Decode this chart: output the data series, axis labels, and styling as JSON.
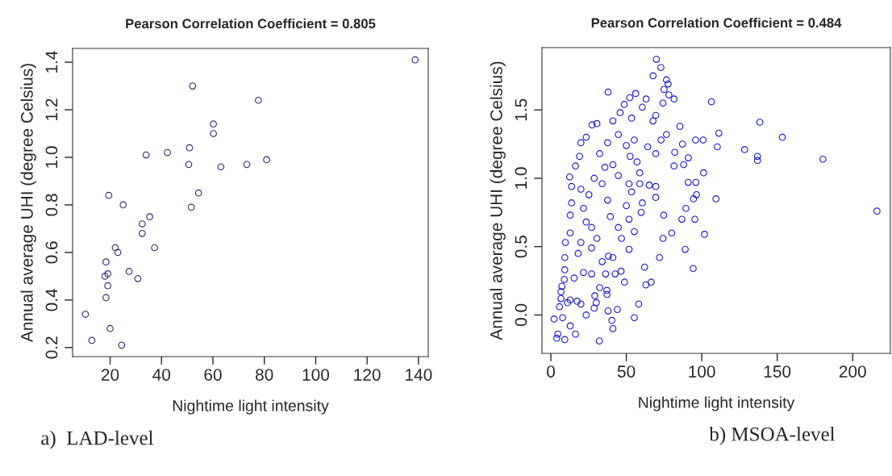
{
  "chart_data": [
    {
      "type": "scatter",
      "title": "Pearson Correlation Coefficient = 0.805",
      "xlabel": "Nightime light intensity",
      "ylabel": "Annual average UHI (degree Celsius)",
      "annotations": [
        "a)  LAD-level"
      ],
      "marker": "circle",
      "grid": false,
      "xlim": [
        5.4,
        143.8
      ],
      "ylim": [
        0.162,
        1.458
      ],
      "xticks": [
        20,
        40,
        60,
        80,
        100,
        120,
        140
      ],
      "yticks": [
        {
          "value": 0.2,
          "label": "0.2"
        },
        {
          "value": 0.4,
          "label": "0.4"
        },
        {
          "value": 0.6,
          "label": "0.6"
        },
        {
          "value": 0.8,
          "label": "0.8"
        },
        {
          "value": 1.0,
          "label": "1.0"
        },
        {
          "value": 1.2,
          "label": "1.2"
        },
        {
          "value": 1.4,
          "label": "1.4"
        }
      ],
      "series": [
        {
          "color": "#303070",
          "x": [
            138.7,
            52.1,
            77.7,
            60.2,
            60.2,
            50.9,
            42.3,
            34.0,
            80.9,
            73.2,
            50.6,
            63.1,
            54.4,
            19.5,
            25.1,
            51.6,
            35.4,
            32.5,
            32.5,
            37.3,
            22.0,
            23.0,
            18.4,
            27.4,
            30.8,
            18.0,
            19.1,
            19.1,
            18.4,
            10.4,
            20.0,
            12.9,
            24.5
          ],
          "values": [
            1.41,
            1.3,
            1.24,
            1.14,
            1.1,
            1.04,
            1.02,
            1.01,
            0.99,
            0.97,
            0.97,
            0.96,
            0.85,
            0.84,
            0.8,
            0.79,
            0.75,
            0.72,
            0.68,
            0.62,
            0.62,
            0.6,
            0.56,
            0.52,
            0.49,
            0.5,
            0.51,
            0.46,
            0.41,
            0.34,
            0.28,
            0.23,
            0.21
          ]
        }
      ]
    },
    {
      "type": "scatter",
      "title": "Pearson Correlation Coefficient = 0.484",
      "xlabel": "Nightime light intensity",
      "ylabel": "Annual average UHI (degree Celsius)",
      "annotations": [
        "b) MSOA-level"
      ],
      "marker": "circle",
      "grid": false,
      "xlim": [
        -5.9,
        225
      ],
      "ylim": [
        -0.281,
        1.956
      ],
      "xticks": [
        0,
        50,
        100,
        150,
        200
      ],
      "yticks": [
        {
          "value": 0.0,
          "label": "0.0"
        },
        {
          "value": 0.5,
          "label": "0.5"
        },
        {
          "value": 1.0,
          "label": "1.0"
        },
        {
          "value": 1.5,
          "label": "1.5"
        }
      ],
      "series": [
        {
          "color": "#1a1acc",
          "x": [
            69.9,
            72.9,
            67.7,
            76.6,
            77.7,
            37.9,
            56.2,
            75.0,
            78.2,
            81.6,
            52.3,
            63.1,
            106.4,
            48.6,
            74.3,
            138.5,
            153.4,
            111.3,
            95.9,
            100.9,
            110.3,
            128.4,
            136.9,
            136.9,
            180.3,
            216.1,
            101.2,
            96.1,
            91.0,
            109.4,
            96.5,
            94.5,
            95.4,
            101.8,
            89.0,
            94.3,
            85.5,
            87.2,
            91.1,
            88.0,
            82.1,
            81.6,
            89.5,
            86.8,
            80.1,
            74.8,
            72.0,
            74.3,
            66.5,
            62.9,
            62.1,
            58.2,
            55.3,
            44.0,
            41.1,
            40.4,
            37.9,
            32.1,
            16.3,
            9.2,
            3.9,
            4.6,
            2.1,
            12.8,
            7.8,
            5.7,
            11.0,
            6.7,
            9.2,
            7.3,
            23.4,
            28.7,
            30.1,
            37.2,
            37.1,
            32.3,
            29.1,
            17.4,
            19.9,
            12.8,
            15.4,
            21.6,
            27.0,
            36.3,
            42.6,
            46.5,
            48.8,
            38.1,
            41.1,
            51.8,
            46.8,
            55.3,
            59.8,
            51.8,
            60.6,
            65.2,
            69.5,
            58.9,
            52.5,
            64.2,
            67.7,
            60.6,
            53.5,
            45.9,
            41.1,
            30.5,
            27.3,
            23.4,
            19.9,
            19.0,
            16.3,
            12.4,
            13.7,
            13.7,
            12.8,
            12.8,
            9.6,
            9.2,
            8.9,
            6.7,
            19.9,
            25.2,
            21.6,
            23.4,
            27.0,
            30.5,
            19.9,
            27.0,
            18.1,
            34.0,
            28.7,
            35.8,
            41.1,
            44.7,
            34.0,
            37.6,
            39.4,
            44.7,
            32.3,
            37.6,
            44.7,
            50.0,
            55.3,
            57.1,
            51.8,
            53.5,
            50.0,
            58.9,
            69.5,
            69.5,
            73.0,
            76.6,
            69.5
          ],
          "values": [
            1.87,
            1.81,
            1.75,
            1.72,
            1.69,
            1.63,
            1.62,
            1.65,
            1.61,
            1.58,
            1.59,
            1.58,
            1.56,
            1.54,
            1.55,
            1.41,
            1.3,
            1.33,
            1.28,
            1.28,
            1.23,
            1.21,
            1.16,
            1.13,
            1.14,
            0.76,
            1.04,
            0.97,
            0.97,
            0.85,
            0.88,
            0.85,
            0.7,
            0.59,
            0.48,
            0.34,
            1.38,
            1.25,
            1.15,
            1.1,
            1.19,
            1.09,
            0.78,
            0.7,
            0.6,
            0.73,
            0.42,
            0.56,
            0.24,
            0.22,
            0.35,
            0.08,
            -0.02,
            0.04,
            -0.1,
            -0.04,
            0.03,
            -0.19,
            -0.14,
            -0.18,
            -0.17,
            -0.14,
            -0.03,
            -0.08,
            -0.02,
            0.06,
            0.09,
            0.12,
            0.33,
            0.21,
            0.0,
            0.05,
            0.09,
            0.15,
            0.18,
            0.2,
            0.14,
            0.1,
            0.08,
            0.11,
            0.27,
            0.31,
            0.3,
            0.3,
            0.3,
            0.32,
            0.24,
            0.43,
            0.42,
            0.48,
            0.56,
            0.61,
            0.75,
            0.7,
            0.82,
            0.95,
            0.86,
            1.04,
            1.16,
            1.23,
            1.42,
            1.52,
            1.44,
            1.48,
            1.42,
            1.4,
            1.39,
            1.3,
            1.26,
            1.16,
            1.09,
            1.01,
            0.94,
            0.82,
            0.73,
            0.6,
            0.53,
            0.42,
            0.26,
            0.17,
            0.92,
            0.88,
            0.78,
            0.68,
            0.64,
            0.56,
            0.53,
            0.49,
            0.45,
            0.39,
            1.0,
            1.08,
            1.1,
            1.02,
            0.96,
            0.84,
            0.72,
            0.64,
            1.18,
            1.26,
            1.32,
            1.24,
            1.28,
            1.12,
            0.96,
            0.9,
            0.8,
            0.96,
            0.94,
            1.18,
            1.28,
            1.32,
            1.46
          ]
        }
      ]
    }
  ]
}
